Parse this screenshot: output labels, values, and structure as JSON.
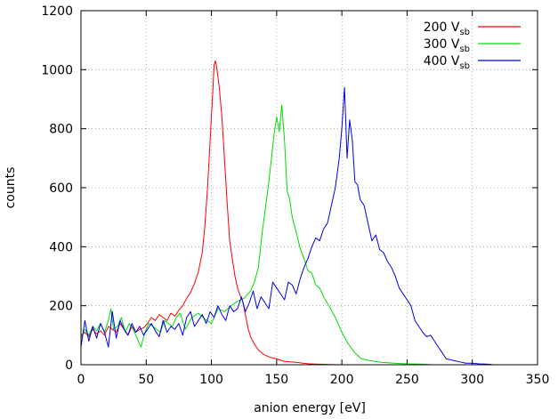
{
  "chart_data": {
    "type": "line",
    "xlabel": "anion energy [eV]",
    "ylabel": "counts",
    "xlim": [
      0,
      350
    ],
    "ylim": [
      0,
      1200
    ],
    "xticks": [
      "0",
      "50",
      "100",
      "150",
      "200",
      "250",
      "300",
      "350"
    ],
    "yticks": [
      "0",
      "200",
      "400",
      "600",
      "800",
      "1000",
      "1200"
    ],
    "grid": true,
    "legend_position": "top-right",
    "series": [
      {
        "name": "200 V",
        "sub": "sb",
        "color": "#ff0000",
        "x": [
          0,
          3,
          6,
          9,
          12,
          15,
          18,
          21,
          24,
          27,
          30,
          33,
          36,
          39,
          42,
          45,
          48,
          51,
          54,
          57,
          60,
          63,
          66,
          69,
          72,
          75,
          78,
          81,
          84,
          87,
          90,
          93,
          95,
          97,
          99,
          101,
          102,
          103,
          104,
          106,
          108,
          110,
          112,
          114,
          116,
          118,
          120,
          122,
          124,
          126,
          128,
          130,
          133,
          136,
          140,
          145,
          150,
          155,
          160,
          165,
          170,
          175,
          180,
          190,
          200,
          210,
          220
        ],
        "y": [
          100,
          110,
          95,
          120,
          105,
          115,
          100,
          130,
          120,
          110,
          140,
          120,
          100,
          130,
          110,
          120,
          125,
          140,
          160,
          150,
          170,
          160,
          150,
          175,
          165,
          185,
          200,
          225,
          245,
          275,
          315,
          380,
          470,
          600,
          760,
          920,
          1015,
          1030,
          1010,
          940,
          840,
          700,
          550,
          420,
          360,
          300,
          260,
          235,
          215,
          170,
          125,
          95,
          70,
          50,
          35,
          25,
          20,
          12,
          10,
          8,
          5,
          3,
          2,
          1,
          0,
          0,
          0
        ]
      },
      {
        "name": "300 V",
        "sub": "sb",
        "color": "#00dd00",
        "x": [
          0,
          3,
          6,
          9,
          12,
          15,
          18,
          21,
          23,
          25,
          28,
          31,
          34,
          37,
          40,
          43,
          46,
          49,
          52,
          55,
          58,
          61,
          64,
          67,
          70,
          73,
          76,
          80,
          85,
          90,
          95,
          100,
          105,
          110,
          115,
          120,
          125,
          130,
          133,
          136,
          139,
          142,
          144,
          146,
          148,
          150,
          152,
          154,
          156,
          158,
          160,
          162,
          165,
          168,
          171,
          174,
          177,
          180,
          183,
          186,
          190,
          195,
          200,
          205,
          210,
          215,
          220,
          230,
          240,
          250,
          260,
          270
        ],
        "y": [
          90,
          120,
          100,
          130,
          115,
          140,
          110,
          150,
          190,
          120,
          130,
          160,
          110,
          140,
          120,
          90,
          60,
          110,
          140,
          130,
          120,
          110,
          150,
          140,
          130,
          160,
          175,
          120,
          160,
          175,
          155,
          140,
          190,
          180,
          200,
          215,
          225,
          250,
          280,
          330,
          450,
          550,
          620,
          700,
          780,
          840,
          790,
          880,
          760,
          590,
          560,
          500,
          450,
          395,
          360,
          320,
          310,
          270,
          260,
          230,
          200,
          160,
          110,
          70,
          40,
          20,
          15,
          8,
          5,
          3,
          2,
          0
        ]
      },
      {
        "name": "400 V",
        "sub": "sb",
        "color": "#0000ee",
        "x": [
          0,
          3,
          6,
          9,
          12,
          15,
          18,
          21,
          24,
          27,
          30,
          33,
          36,
          39,
          42,
          45,
          48,
          51,
          54,
          57,
          60,
          63,
          66,
          69,
          72,
          75,
          78,
          81,
          84,
          87,
          90,
          93,
          96,
          99,
          102,
          105,
          108,
          111,
          114,
          117,
          120,
          123,
          126,
          129,
          132,
          135,
          138,
          141,
          144,
          147,
          150,
          153,
          156,
          159,
          162,
          165,
          168,
          171,
          174,
          177,
          180,
          183,
          186,
          189,
          192,
          195,
          198,
          200,
          202,
          204,
          206,
          208,
          210,
          212,
          214,
          217,
          220,
          223,
          226,
          229,
          232,
          235,
          238,
          241,
          244,
          247,
          250,
          253,
          256,
          259,
          262,
          265,
          268,
          271,
          274,
          277,
          280,
          285,
          290,
          295,
          300,
          305,
          310,
          315
        ],
        "y": [
          60,
          150,
          80,
          130,
          90,
          140,
          110,
          60,
          180,
          90,
          150,
          120,
          100,
          140,
          110,
          130,
          100,
          120,
          140,
          115,
          95,
          150,
          110,
          130,
          120,
          140,
          100,
          160,
          180,
          130,
          150,
          170,
          140,
          180,
          160,
          200,
          170,
          150,
          200,
          180,
          190,
          230,
          180,
          210,
          250,
          190,
          230,
          210,
          190,
          280,
          260,
          240,
          220,
          280,
          270,
          240,
          290,
          330,
          360,
          400,
          430,
          420,
          460,
          480,
          540,
          600,
          700,
          800,
          940,
          700,
          830,
          760,
          620,
          610,
          560,
          540,
          480,
          420,
          440,
          390,
          380,
          350,
          330,
          300,
          260,
          240,
          220,
          200,
          150,
          130,
          110,
          95,
          100,
          80,
          60,
          40,
          20,
          15,
          10,
          5,
          5,
          3,
          2,
          1
        ]
      }
    ]
  }
}
